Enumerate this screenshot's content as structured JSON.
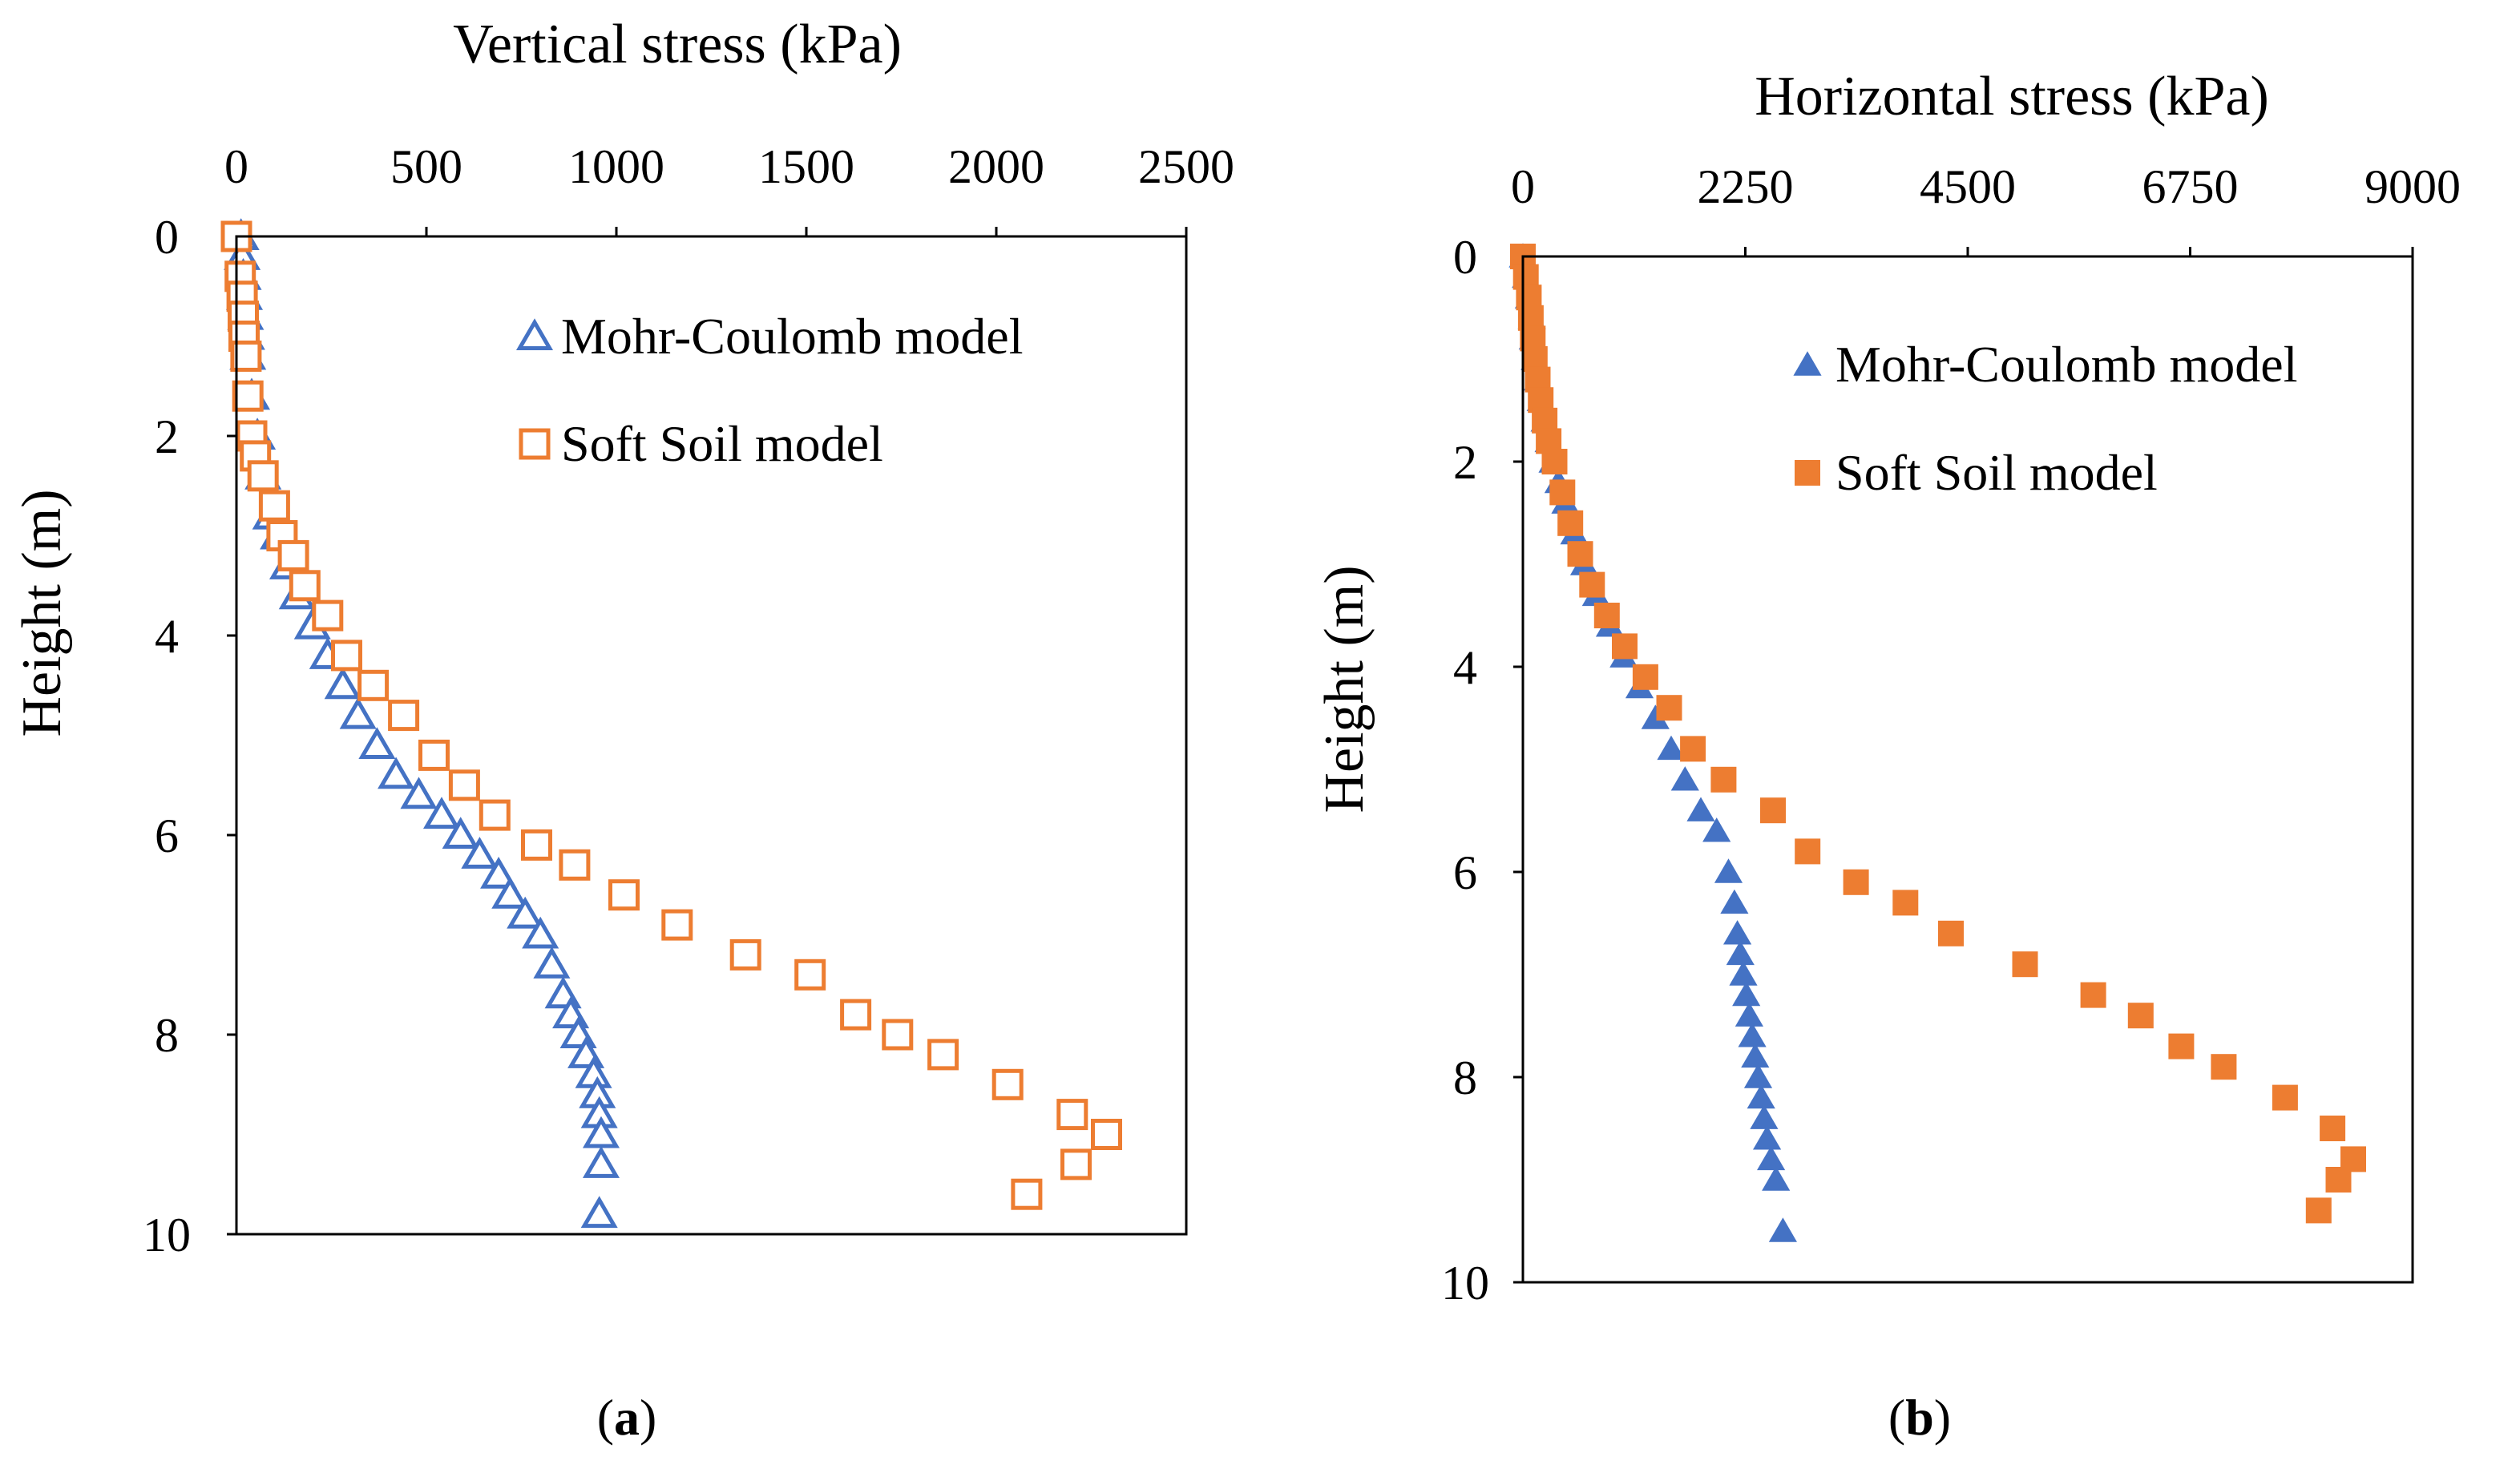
{
  "chart_data": [
    {
      "type": "scatter",
      "panel_label": "(a)",
      "panel_letter": "a",
      "title": "",
      "xlabel": "Vertical stress (kPa)",
      "ylabel": "Height (m)",
      "x_axis_position": "top",
      "xlim": [
        0,
        2500
      ],
      "ylim": [
        0,
        10
      ],
      "y_inverted": true,
      "xticks": [
        0,
        500,
        1000,
        1500,
        2000,
        2500
      ],
      "xtick_labels": [
        "0",
        "500",
        "1000",
        "1500",
        "2000",
        "2500"
      ],
      "yticks": [
        0,
        2,
        4,
        6,
        8,
        10
      ],
      "ytick_labels": [
        "0",
        "2",
        "4",
        "6",
        "8",
        "10"
      ],
      "grid": false,
      "legend_position": "top-right",
      "series": [
        {
          "name": "Mohr-Coulomb model",
          "marker": "triangle-open",
          "color": "#4472C4",
          "x": [
            12,
            15,
            18,
            21,
            24,
            27,
            30,
            40,
            55,
            70,
            90,
            110,
            135,
            160,
            200,
            240,
            280,
            320,
            370,
            420,
            480,
            540,
            590,
            640,
            690,
            720,
            760,
            800,
            830,
            860,
            880,
            900,
            920,
            940,
            950,
            955,
            960,
            960,
            955
          ],
          "y": [
            0,
            0.2,
            0.4,
            0.6,
            0.8,
            1.0,
            1.2,
            1.6,
            2.0,
            2.4,
            2.8,
            3.0,
            3.3,
            3.6,
            3.9,
            4.2,
            4.5,
            4.8,
            5.1,
            5.4,
            5.6,
            5.8,
            6.0,
            6.2,
            6.4,
            6.6,
            6.8,
            7.0,
            7.3,
            7.6,
            7.8,
            8.0,
            8.2,
            8.4,
            8.6,
            8.8,
            9.0,
            9.3,
            9.8
          ]
        },
        {
          "name": "Soft Soil model",
          "marker": "square-open",
          "color": "#ED7D31",
          "x": [
            0,
            10,
            15,
            18,
            20,
            25,
            30,
            40,
            50,
            70,
            100,
            120,
            150,
            180,
            240,
            290,
            360,
            440,
            520,
            600,
            680,
            790,
            890,
            1020,
            1160,
            1340,
            1510,
            1630,
            1740,
            1860,
            2030,
            2200,
            2290,
            2210,
            2080
          ],
          "y": [
            0,
            0.4,
            0.6,
            0.8,
            1.0,
            1.2,
            1.6,
            2.0,
            2.2,
            2.4,
            2.7,
            3.0,
            3.2,
            3.5,
            3.8,
            4.2,
            4.5,
            4.8,
            5.2,
            5.5,
            5.8,
            6.1,
            6.3,
            6.6,
            6.9,
            7.2,
            7.4,
            7.8,
            8.0,
            8.2,
            8.5,
            8.8,
            9.0,
            9.3,
            9.6
          ]
        }
      ]
    },
    {
      "type": "scatter",
      "panel_label": "(b)",
      "panel_letter": "b",
      "title": "",
      "xlabel": "Horizontal stress (kPa)",
      "ylabel": "Height (m)",
      "x_axis_position": "top",
      "xlim": [
        0,
        9000
      ],
      "ylim": [
        0,
        10
      ],
      "y_inverted": true,
      "xticks": [
        0,
        2250,
        4500,
        6750,
        9000
      ],
      "xtick_labels": [
        "0",
        "2250",
        "4500",
        "6750",
        "9000"
      ],
      "yticks": [
        0,
        2,
        4,
        6,
        8,
        10
      ],
      "ytick_labels": [
        "0",
        "2",
        "4",
        "6",
        "8",
        "10"
      ],
      "grid": false,
      "legend_position": "top-right",
      "series": [
        {
          "name": "Mohr-Coulomb model",
          "marker": "triangle-filled",
          "color": "#4472C4",
          "x": [
            0,
            30,
            60,
            90,
            100,
            120,
            150,
            180,
            220,
            260,
            300,
            360,
            430,
            520,
            620,
            740,
            880,
            1020,
            1180,
            1340,
            1500,
            1640,
            1800,
            1960,
            2080,
            2140,
            2170,
            2200,
            2230,
            2260,
            2290,
            2320,
            2350,
            2380,
            2410,
            2440,
            2470,
            2510,
            2560,
            2630
          ],
          "y": [
            0,
            0.2,
            0.4,
            0.6,
            0.8,
            1.0,
            1.2,
            1.4,
            1.6,
            1.8,
            2.0,
            2.2,
            2.4,
            2.7,
            3.0,
            3.3,
            3.6,
            3.9,
            4.2,
            4.5,
            4.8,
            5.1,
            5.4,
            5.6,
            6.0,
            6.3,
            6.6,
            6.8,
            7.0,
            7.2,
            7.4,
            7.6,
            7.8,
            8.0,
            8.2,
            8.4,
            8.6,
            8.8,
            9.0,
            9.5
          ]
        },
        {
          "name": "Soft Soil model",
          "marker": "square-filled",
          "color": "#ED7D31",
          "x": [
            0,
            30,
            60,
            80,
            100,
            120,
            150,
            180,
            220,
            260,
            320,
            400,
            480,
            580,
            700,
            850,
            1030,
            1240,
            1480,
            1720,
            2030,
            2530,
            2880,
            3370,
            3870,
            4330,
            5080,
            5770,
            6250,
            6660,
            7090,
            7710,
            8190,
            8400,
            8250,
            8050
          ],
          "y": [
            0,
            0.2,
            0.4,
            0.6,
            0.8,
            1.0,
            1.2,
            1.4,
            1.6,
            1.8,
            2.0,
            2.3,
            2.6,
            2.9,
            3.2,
            3.5,
            3.8,
            4.1,
            4.4,
            4.8,
            5.1,
            5.4,
            5.8,
            6.1,
            6.3,
            6.6,
            6.9,
            7.2,
            7.4,
            7.7,
            7.9,
            8.2,
            8.5,
            8.8,
            9.0,
            9.3
          ]
        }
      ]
    }
  ]
}
